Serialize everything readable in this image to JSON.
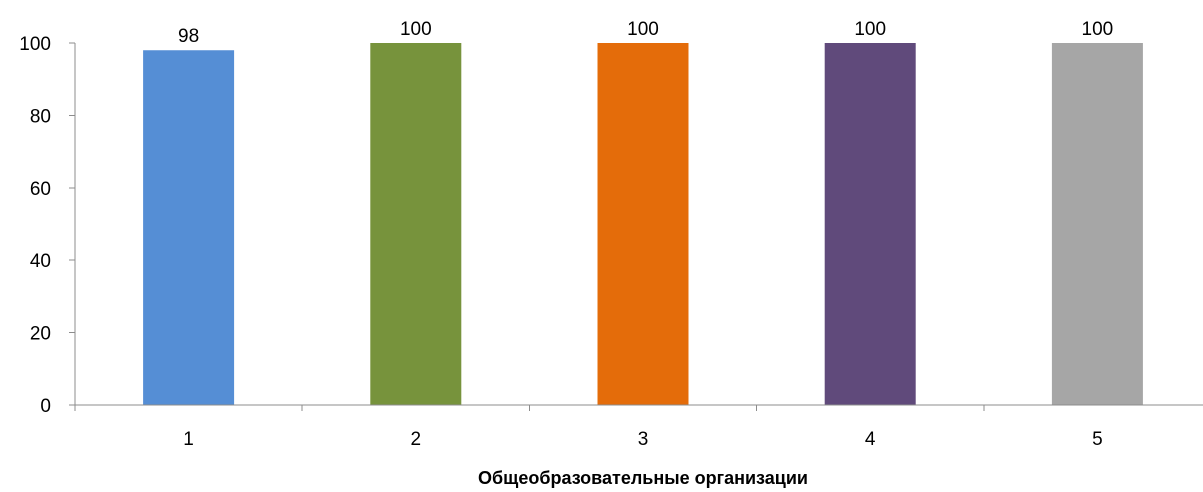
{
  "chart_data": {
    "type": "bar",
    "title": "",
    "xlabel": "Общеобразовательные организации",
    "ylabel": "",
    "categories": [
      "1",
      "2",
      "3",
      "4",
      "5"
    ],
    "values": [
      98,
      100,
      100,
      100,
      100
    ],
    "data_labels": [
      "98",
      "100",
      "100",
      "100",
      "100"
    ],
    "colors": [
      "#558ed5",
      "#77933c",
      "#e46c0a",
      "#604a7b",
      "#a6a6a6"
    ],
    "ylim": [
      0,
      100
    ],
    "yticks": [
      0,
      20,
      40,
      60,
      80,
      100
    ],
    "ytick_labels": [
      "0",
      "20",
      "40",
      "60",
      "80",
      "100"
    ],
    "grid": false,
    "legend": "none"
  }
}
